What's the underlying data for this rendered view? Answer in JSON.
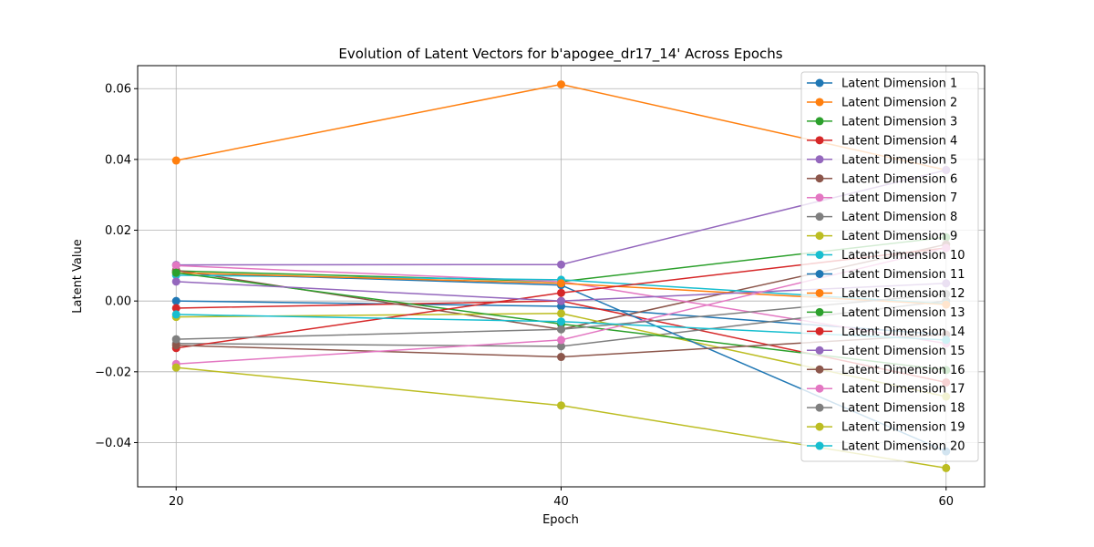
{
  "chart_data": {
    "type": "line",
    "title": "Evolution of Latent Vectors for b'apogee_dr17_14' Across Epochs",
    "xlabel": "Epoch",
    "ylabel": "Latent Value",
    "x": [
      20,
      40,
      60
    ],
    "xticks": [
      "20",
      "40",
      "60"
    ],
    "xlim": [
      18,
      62
    ],
    "ylim": [
      -0.0525,
      0.0665
    ],
    "yticks": [
      -0.04,
      -0.02,
      0.0,
      0.02,
      0.04,
      0.06
    ],
    "ytick_labels": [
      "−0.04",
      "−0.02",
      "0.00",
      "0.02",
      "0.04",
      "0.06"
    ],
    "grid": true,
    "legend_position": "top-right",
    "series": [
      {
        "name": "Latent Dimension 1",
        "color": "#1f77b4",
        "values": [
          0.0,
          -0.0015,
          -0.0095
        ]
      },
      {
        "name": "Latent Dimension 2",
        "color": "#ff7f0e",
        "values": [
          0.0397,
          0.0612,
          0.037
        ]
      },
      {
        "name": "Latent Dimension 3",
        "color": "#2ca02c",
        "values": [
          0.0085,
          0.0055,
          0.018
        ]
      },
      {
        "name": "Latent Dimension 4",
        "color": "#d62728",
        "values": [
          -0.002,
          0.0,
          -0.023
        ]
      },
      {
        "name": "Latent Dimension 5",
        "color": "#9467bd",
        "values": [
          0.0102,
          0.0103,
          0.037
        ]
      },
      {
        "name": "Latent Dimension 6",
        "color": "#8c564b",
        "values": [
          0.0087,
          -0.008,
          0.016
        ]
      },
      {
        "name": "Latent Dimension 7",
        "color": "#e377c2",
        "values": [
          0.01,
          0.0055,
          -0.012
        ]
      },
      {
        "name": "Latent Dimension 8",
        "color": "#7f7f7f",
        "values": [
          -0.012,
          -0.0128,
          0.0
        ]
      },
      {
        "name": "Latent Dimension 9",
        "color": "#bcbd22",
        "values": [
          -0.0045,
          -0.0035,
          -0.027
        ]
      },
      {
        "name": "Latent Dimension 10",
        "color": "#17becf",
        "values": [
          0.0073,
          0.006,
          -0.0008
        ]
      },
      {
        "name": "Latent Dimension 11",
        "color": "#1f77b4",
        "values": [
          0.008,
          0.0045,
          -0.0425
        ]
      },
      {
        "name": "Latent Dimension 12",
        "color": "#ff7f0e",
        "values": [
          0.008,
          0.005,
          -0.001
        ]
      },
      {
        "name": "Latent Dimension 13",
        "color": "#2ca02c",
        "values": [
          0.008,
          -0.0065,
          -0.0195
        ]
      },
      {
        "name": "Latent Dimension 14",
        "color": "#d62728",
        "values": [
          -0.0133,
          0.0023,
          0.015
        ]
      },
      {
        "name": "Latent Dimension 15",
        "color": "#9467bd",
        "values": [
          0.0055,
          0.0,
          0.005
        ]
      },
      {
        "name": "Latent Dimension 16",
        "color": "#8c564b",
        "values": [
          -0.0125,
          -0.0158,
          -0.0095
        ]
      },
      {
        "name": "Latent Dimension 17",
        "color": "#e377c2",
        "values": [
          -0.0178,
          -0.011,
          0.015
        ]
      },
      {
        "name": "Latent Dimension 18",
        "color": "#7f7f7f",
        "values": [
          -0.0108,
          -0.008,
          0.002
        ]
      },
      {
        "name": "Latent Dimension 19",
        "color": "#bcbd22",
        "values": [
          -0.0188,
          -0.0295,
          -0.0472
        ]
      },
      {
        "name": "Latent Dimension 20",
        "color": "#17becf",
        "values": [
          -0.0038,
          -0.0058,
          -0.011
        ]
      }
    ]
  }
}
